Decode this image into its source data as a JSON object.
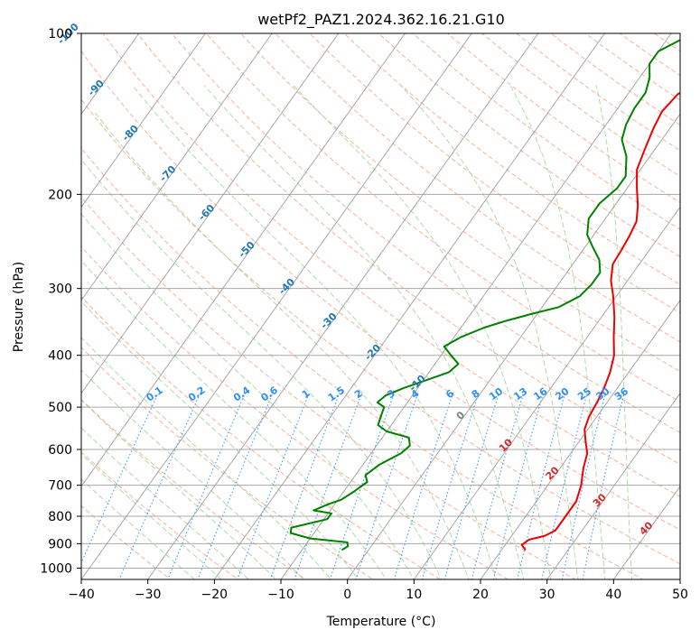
{
  "chart_data": {
    "type": "line",
    "title": "wetPf2_PAZ1.2024.362.16.21.G10",
    "xlabel": "Temperature (°C)",
    "ylabel": "Pressure (hPa)",
    "xlim": [
      -40,
      50
    ],
    "ylim": [
      1050,
      100
    ],
    "y_scale": "log",
    "x_ticks": [
      -40,
      -30,
      -20,
      -10,
      0,
      10,
      20,
      30,
      40,
      50
    ],
    "y_ticks": [
      100,
      200,
      300,
      400,
      500,
      600,
      700,
      800,
      900,
      1000
    ],
    "grid": true,
    "series": [
      {
        "color": "#ee0000",
        "points": [
          [
            23.6,
            925
          ],
          [
            22.5,
            905
          ],
          [
            23,
            885
          ],
          [
            25,
            870
          ],
          [
            26,
            850
          ],
          [
            26,
            800
          ],
          [
            26,
            750
          ],
          [
            25,
            700
          ],
          [
            23.5,
            650
          ],
          [
            22.5,
            610
          ],
          [
            21,
            580
          ],
          [
            19.5,
            550
          ],
          [
            18.8,
            520
          ],
          [
            18.5,
            490
          ],
          [
            18,
            460
          ],
          [
            17.2,
            430
          ],
          [
            16,
            400
          ],
          [
            14,
            370
          ],
          [
            12,
            340
          ],
          [
            9.5,
            310
          ],
          [
            7.5,
            290
          ],
          [
            6,
            270
          ],
          [
            5.8,
            255
          ],
          [
            5.5,
            240
          ],
          [
            5,
            225
          ],
          [
            3.5,
            210
          ],
          [
            1.5,
            195
          ],
          [
            -0.5,
            180
          ],
          [
            -1.5,
            165
          ],
          [
            -2.5,
            150
          ],
          [
            -3,
            140
          ],
          [
            -2.5,
            130
          ],
          [
            -1,
            125
          ],
          [
            2,
            119
          ],
          [
            4,
            115
          ],
          [
            5,
            110
          ],
          [
            5,
            104
          ],
          [
            5,
            100
          ]
        ]
      },
      {
        "color": "#008000",
        "points": [
          [
            -4,
            925
          ],
          [
            -3.5,
            910
          ],
          [
            -4,
            895
          ],
          [
            -10,
            880
          ],
          [
            -13.5,
            860
          ],
          [
            -14,
            840
          ],
          [
            -9.5,
            810
          ],
          [
            -9.5,
            790
          ],
          [
            -12.5,
            780
          ],
          [
            -11,
            760
          ],
          [
            -9.5,
            745
          ],
          [
            -8.5,
            720
          ],
          [
            -7.5,
            690
          ],
          [
            -8.5,
            670
          ],
          [
            -7.5,
            640
          ],
          [
            -5.5,
            610
          ],
          [
            -5,
            590
          ],
          [
            -6,
            570
          ],
          [
            -10,
            555
          ],
          [
            -12,
            540
          ],
          [
            -12.5,
            520
          ],
          [
            -13,
            500
          ],
          [
            -14.5,
            490
          ],
          [
            -14,
            475
          ],
          [
            -12,
            460
          ],
          [
            -9.5,
            445
          ],
          [
            -7,
            430
          ],
          [
            -6.5,
            415
          ],
          [
            -8.5,
            400
          ],
          [
            -10.5,
            385
          ],
          [
            -9,
            370
          ],
          [
            -6.5,
            355
          ],
          [
            -4,
            345
          ],
          [
            -1,
            335
          ],
          [
            2.5,
            325
          ],
          [
            4.5,
            310
          ],
          [
            5,
            295
          ],
          [
            5,
            280
          ],
          [
            3.5,
            265
          ],
          [
            1,
            250
          ],
          [
            -1,
            238
          ],
          [
            -2.5,
            222
          ],
          [
            -2.5,
            208
          ],
          [
            -1.5,
            195
          ],
          [
            -1.5,
            185
          ],
          [
            -3.5,
            170
          ],
          [
            -6,
            158
          ],
          [
            -7,
            148
          ],
          [
            -7.5,
            138
          ],
          [
            -7.5,
            129
          ],
          [
            -8.5,
            121
          ],
          [
            -10,
            114
          ],
          [
            -10,
            108
          ],
          [
            -8,
            103
          ],
          [
            -6.5,
            100
          ]
        ]
      }
    ],
    "isotherm_labels": [
      "-100",
      "-90",
      "-80",
      "-70",
      "-60",
      "-50",
      "-40",
      "-30",
      "-20",
      "-10",
      "0",
      "10",
      "20",
      "30",
      "40"
    ],
    "mixing_ratio_labels": [
      "0.1",
      "0.2",
      "0.4",
      "0.6",
      "1",
      "1.5",
      "2",
      "3",
      "4",
      "6",
      "8",
      "10",
      "13",
      "16",
      "20",
      "25",
      "30",
      "36"
    ],
    "colors": {
      "temperature": "#ee0000",
      "dewpoint": "#008000",
      "dry_adiabat": "#f7a98b",
      "moist_adiabat": "#a8d5a0",
      "mixing_ratio": "#3d9bff",
      "isotherm": "#999999",
      "cold_label": "#1f77b4",
      "warm_label": "#d62728",
      "zero_label": "#808080",
      "mixing_label": "#2f8ff0"
    }
  }
}
